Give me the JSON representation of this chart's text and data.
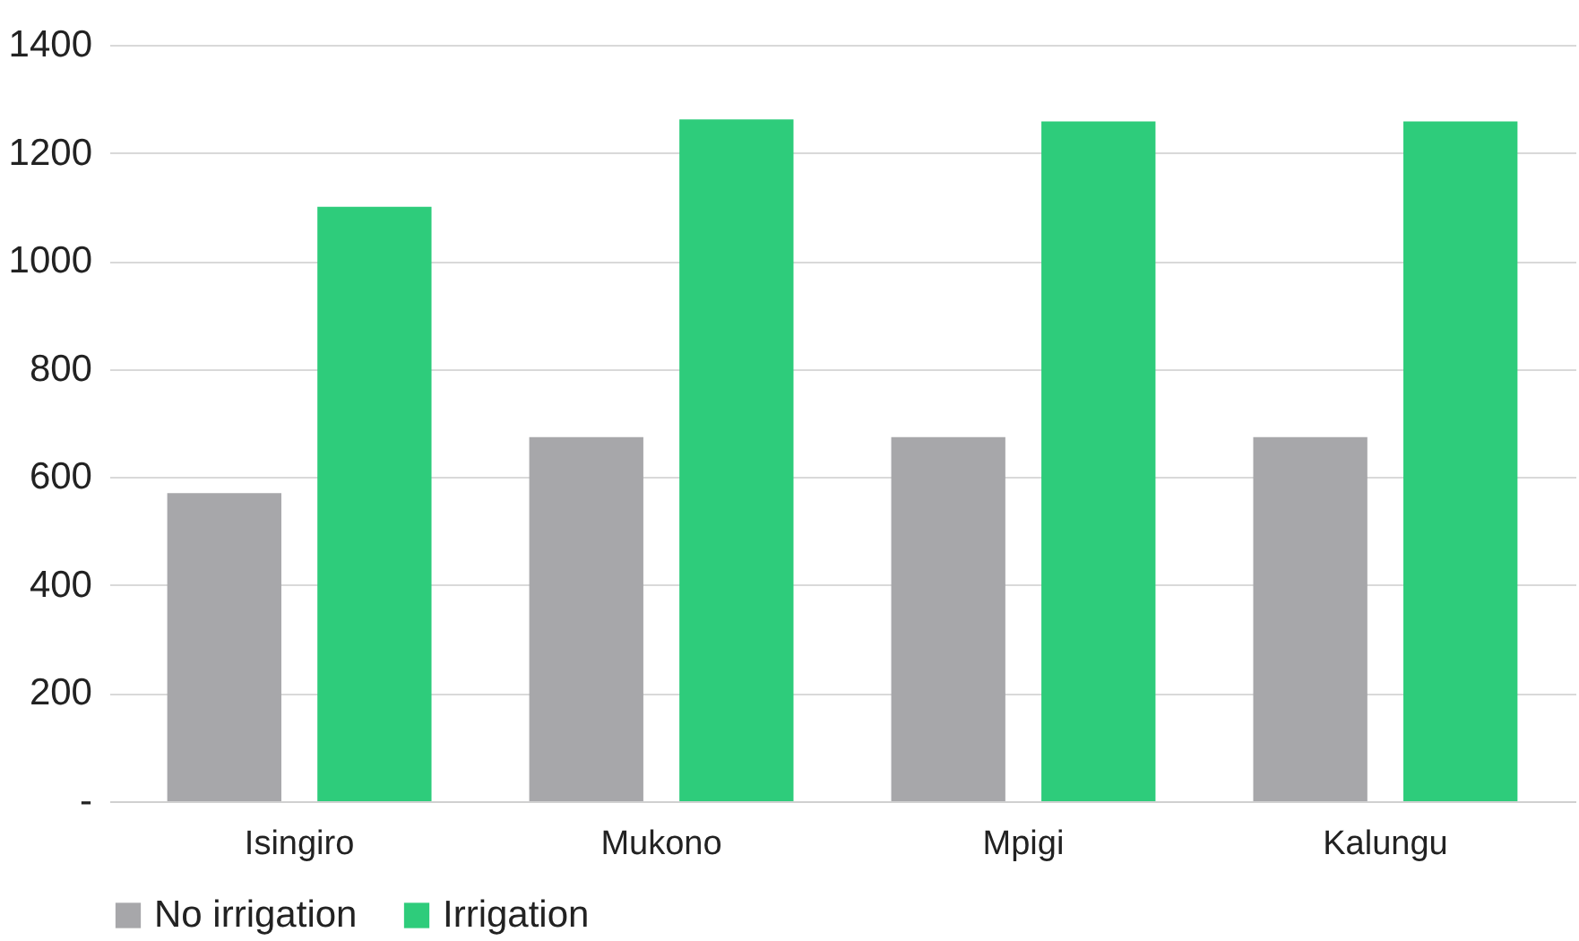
{
  "chart_data": {
    "type": "bar",
    "categories": [
      "Isingiro",
      "Mukono",
      "Mpigi",
      "Kalungu"
    ],
    "series": [
      {
        "name": "No irrigation",
        "color": "#a7a7aa",
        "values": [
          570,
          674,
          674,
          674
        ]
      },
      {
        "name": "Irrigation",
        "color": "#2ecc7b",
        "values": [
          1100,
          1262,
          1258,
          1258
        ]
      }
    ],
    "ylim": [
      0,
      1400
    ],
    "yticks": [
      {
        "value": 0,
        "label": "-"
      },
      200,
      400,
      600,
      800,
      1000,
      1200,
      1400
    ],
    "grid": "y",
    "legend": "bottom"
  }
}
